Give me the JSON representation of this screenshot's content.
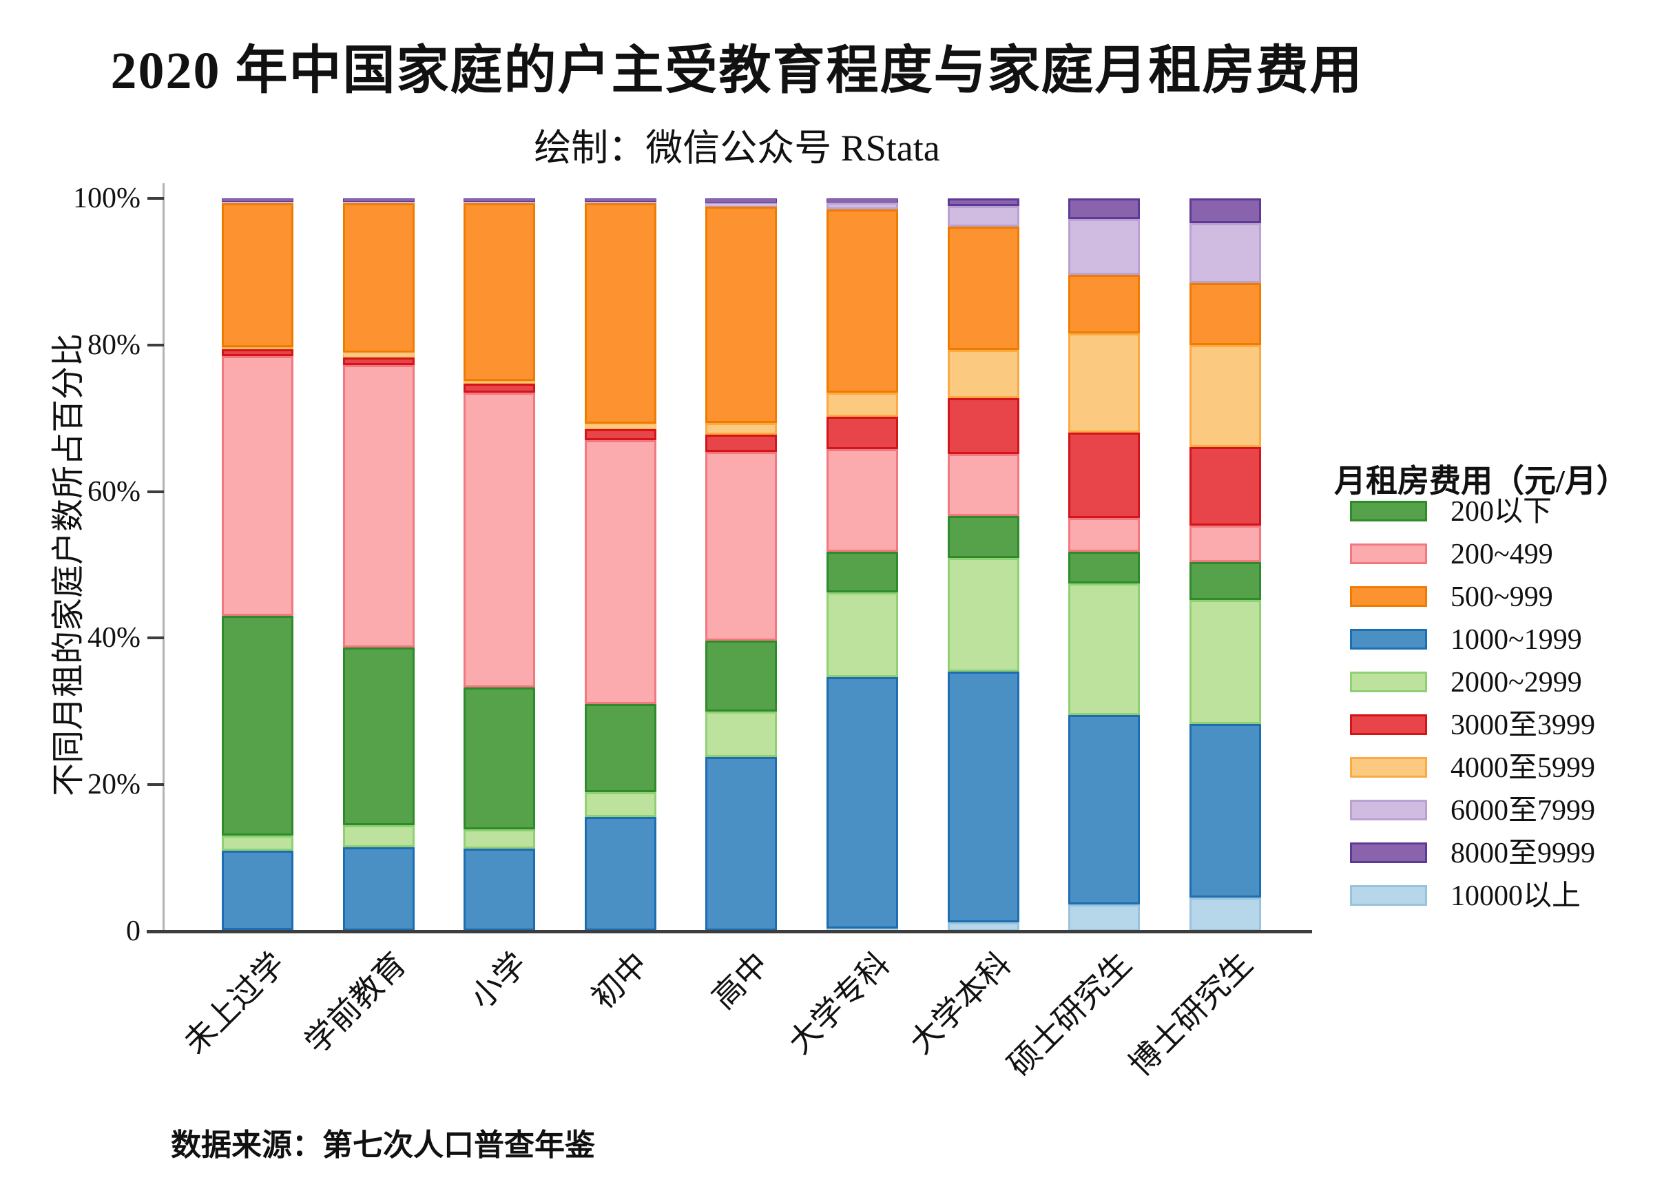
{
  "header": {
    "title": "2020 年中国家庭的户主受教育程度与家庭月租房费用",
    "subtitle": "绘制：微信公众号 RStata"
  },
  "footer": {
    "source": "数据来源：第七次人口普查年鉴"
  },
  "legend": {
    "title": "月租房费用（元/月）",
    "position": "right"
  },
  "y_axis": {
    "tick_labels": [
      "0",
      "20%",
      "40%",
      "60%",
      "80%",
      "100%"
    ]
  },
  "chart_data": {
    "type": "bar",
    "stacked": true,
    "percent_stacked": true,
    "title": "2020 年中国家庭的户主受教育程度与家庭月租房费用",
    "subtitle": "绘制：微信公众号 RStata",
    "xlabel": "",
    "ylabel": "不同月租的家庭户数所占百分比",
    "ylim": [
      0,
      100
    ],
    "grid": false,
    "legend_position": "right",
    "source": "数据来源：第七次人口普查年鉴",
    "categories": [
      "未上过学",
      "学前教育",
      "小学",
      "初中",
      "高中",
      "大学专科",
      "大学本科",
      "硕士研究生",
      "博士研究生"
    ],
    "stack_order_bottom_to_top": [
      "10000以上",
      "1000~1999",
      "2000~2999",
      "200以下",
      "200~499",
      "3000至3999",
      "4000至5999",
      "500~999",
      "6000至7999",
      "8000至9999"
    ],
    "series": [
      {
        "name": "200以下",
        "color": "#55a24b",
        "border": "#2e8b2b",
        "values": [
          29.9,
          24.2,
          19.4,
          12.0,
          9.7,
          5.6,
          5.8,
          4.3,
          5.2
        ]
      },
      {
        "name": "200~499",
        "color": "#fbabae",
        "border": "#f2787f",
        "values": [
          35.5,
          38.6,
          40.2,
          36.0,
          25.7,
          14.0,
          8.4,
          4.6,
          5.0
        ]
      },
      {
        "name": "500~999",
        "color": "#fd9330",
        "border": "#ef7c00",
        "values": [
          19.6,
          20.4,
          24.2,
          30.0,
          29.5,
          25.0,
          16.8,
          8.0,
          8.4
        ]
      },
      {
        "name": "1000~1999",
        "color": "#4a90c4",
        "border": "#1d6db2",
        "values": [
          10.8,
          11.4,
          11.2,
          15.5,
          23.7,
          34.3,
          34.2,
          25.8,
          23.7
        ]
      },
      {
        "name": "2000~2999",
        "color": "#bce29e",
        "border": "#90d073",
        "values": [
          2.1,
          3.0,
          2.6,
          3.4,
          6.2,
          11.5,
          15.5,
          18.0,
          16.9
        ]
      },
      {
        "name": "3000至3999",
        "color": "#e8454a",
        "border": "#d31419",
        "values": [
          0.9,
          1.0,
          1.2,
          1.5,
          2.4,
          4.4,
          7.6,
          11.6,
          10.7
        ]
      },
      {
        "name": "4000至5999",
        "color": "#fcc981",
        "border": "#fbaa43",
        "values": [
          0.3,
          0.6,
          0.4,
          0.8,
          1.6,
          3.3,
          6.6,
          13.6,
          13.9
        ]
      },
      {
        "name": "6000至7999",
        "color": "#cfbce0",
        "border": "#bba1d2",
        "values": [
          0.2,
          0.2,
          0.2,
          0.2,
          0.4,
          0.9,
          2.9,
          7.6,
          8.2
        ]
      },
      {
        "name": "8000至9999",
        "color": "#8964ad",
        "border": "#5e3a97",
        "values": [
          0.5,
          0.5,
          0.5,
          0.5,
          0.7,
          0.6,
          1.0,
          2.8,
          3.4
        ]
      },
      {
        "name": "10000以上",
        "color": "#b6d7e9",
        "border": "#99c2dc",
        "values": [
          0.2,
          0.1,
          0.1,
          0.1,
          0.1,
          0.4,
          1.2,
          3.7,
          4.6
        ]
      }
    ]
  }
}
